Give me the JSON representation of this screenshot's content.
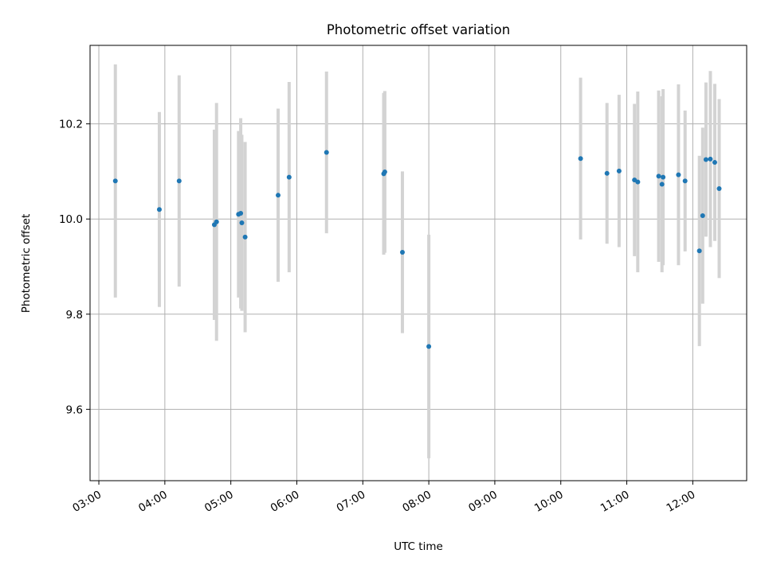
{
  "chart_data": {
    "type": "scatter",
    "title": "Photometric offset variation",
    "xlabel": "UTC time",
    "ylabel": "Photometric offset",
    "x_ticks": [
      "03:00",
      "04:00",
      "05:00",
      "06:00",
      "07:00",
      "08:00",
      "09:00",
      "10:00",
      "11:00",
      "12:00"
    ],
    "y_ticks": [
      "9.6",
      "9.8",
      "10.0",
      "10.2"
    ],
    "y_tick_values": [
      9.6,
      9.8,
      10.0,
      10.2
    ],
    "xlim": [
      "02:52",
      "12:49"
    ],
    "ylim": [
      9.45,
      10.365
    ],
    "grid": true,
    "colors": {
      "point": "#1f77b4",
      "errorbar": "#d3d3d3",
      "grid": "#b0b0b0"
    },
    "series": [
      {
        "points": [
          {
            "x": "03:15",
            "y": 10.08,
            "yerr": 0.245
          },
          {
            "x": "03:55",
            "y": 10.02,
            "yerr": 0.205
          },
          {
            "x": "04:13",
            "y": 10.08,
            "yerr": 0.222
          },
          {
            "x": "04:45",
            "y": 9.988,
            "yerr": 0.2
          },
          {
            "x": "04:47",
            "y": 9.994,
            "yerr": 0.25
          },
          {
            "x": "05:07",
            "y": 10.01,
            "yerr": 0.175
          },
          {
            "x": "05:09",
            "y": 10.012,
            "yerr": 0.2
          },
          {
            "x": "05:10",
            "y": 9.992,
            "yerr": 0.185
          },
          {
            "x": "05:13",
            "y": 9.962,
            "yerr": 0.2
          },
          {
            "x": "05:43",
            "y": 10.05,
            "yerr": 0.182
          },
          {
            "x": "05:53",
            "y": 10.088,
            "yerr": 0.2
          },
          {
            "x": "06:27",
            "y": 10.14,
            "yerr": 0.17
          },
          {
            "x": "07:19",
            "y": 10.095,
            "yerr": 0.17
          },
          {
            "x": "07:20",
            "y": 10.099,
            "yerr": 0.17
          },
          {
            "x": "07:36",
            "y": 9.93,
            "yerr": 0.17
          },
          {
            "x": "08:00",
            "y": 9.732,
            "yerr": 0.235
          },
          {
            "x": "10:18",
            "y": 10.127,
            "yerr": 0.17
          },
          {
            "x": "10:42",
            "y": 10.096,
            "yerr": 0.148
          },
          {
            "x": "10:53",
            "y": 10.101,
            "yerr": 0.16
          },
          {
            "x": "11:07",
            "y": 10.082,
            "yerr": 0.16
          },
          {
            "x": "11:10",
            "y": 10.078,
            "yerr": 0.19
          },
          {
            "x": "11:29",
            "y": 10.09,
            "yerr": 0.18
          },
          {
            "x": "11:32",
            "y": 10.073,
            "yerr": 0.185
          },
          {
            "x": "11:33",
            "y": 10.088,
            "yerr": 0.185
          },
          {
            "x": "11:47",
            "y": 10.093,
            "yerr": 0.19
          },
          {
            "x": "11:53",
            "y": 10.08,
            "yerr": 0.148
          },
          {
            "x": "12:06",
            "y": 9.933,
            "yerr": 0.2
          },
          {
            "x": "12:09",
            "y": 10.007,
            "yerr": 0.185
          },
          {
            "x": "12:12",
            "y": 10.125,
            "yerr": 0.162
          },
          {
            "x": "12:16",
            "y": 10.126,
            "yerr": 0.185
          },
          {
            "x": "12:20",
            "y": 10.119,
            "yerr": 0.165
          },
          {
            "x": "12:24",
            "y": 10.064,
            "yerr": 0.188
          }
        ]
      }
    ]
  }
}
